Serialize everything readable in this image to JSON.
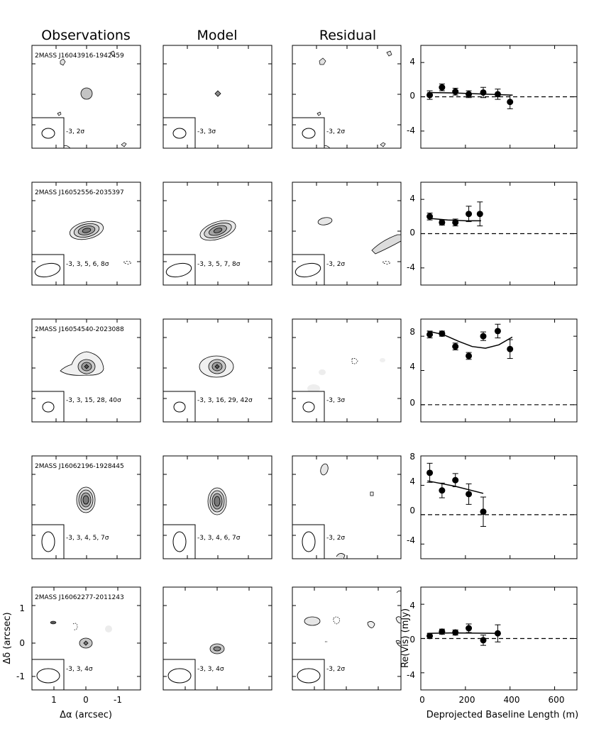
{
  "column_titles": [
    "Observations",
    "Model",
    "Residual"
  ],
  "image_axes": {
    "xlabel": "Δα (arcsec)",
    "ylabel": "Δδ (arcsec)",
    "xticks": [
      "1",
      "0",
      "-1"
    ],
    "yticks": [
      "1",
      "0",
      "-1"
    ]
  },
  "vis_axes": {
    "xlabel": "Deprojected Baseline Length (m)",
    "ylabel": "Re(Vis) (mJy)",
    "xticks": [
      "0",
      "200",
      "400",
      "600"
    ]
  },
  "colors": {
    "ink": "#000000",
    "gray_fill": "#9a9a9a",
    "frame": "#000000"
  },
  "rows": [
    {
      "source": "2MASS J16043916-1942459",
      "obs_levels": "-3, 2σ",
      "model_levels": "-3, 3σ",
      "resid_levels": "-3, 2σ",
      "vis_yticks": [
        "4",
        "0",
        "-4"
      ]
    },
    {
      "source": "2MASS J16052556-2035397",
      "obs_levels": "-3, 3, 5, 6, 8σ",
      "model_levels": "-3, 3, 5, 7, 8σ",
      "resid_levels": "-3, 2σ",
      "vis_yticks": [
        "4",
        "0",
        "-4"
      ]
    },
    {
      "source": "2MASS J16054540-2023088",
      "obs_levels": "-3, 3, 15, 28, 40σ",
      "model_levels": "-3, 3, 16, 29, 42σ",
      "resid_levels": "-3, 3σ",
      "vis_yticks": [
        "8",
        "4",
        "0"
      ]
    },
    {
      "source": "2MASS J16062196-1928445",
      "obs_levels": "-3, 3, 4, 5, 7σ",
      "model_levels": "-3, 3, 4, 6, 7σ",
      "resid_levels": "-3, 2σ",
      "vis_yticks": [
        "8",
        "4",
        "0",
        "-4"
      ]
    },
    {
      "source": "2MASS J16062277-2011243",
      "obs_levels": "-3, 3, 4σ",
      "model_levels": "-3, 3, 4σ",
      "resid_levels": "-3, 2σ",
      "vis_yticks": [
        "4",
        "0",
        "-4"
      ]
    }
  ],
  "chart_data": [
    {
      "type": "scatter",
      "xlabel": "",
      "ylabel": "",
      "xlim": [
        0,
        700
      ],
      "ylim": [
        -6,
        6
      ],
      "points": [
        {
          "x": 40,
          "y": 0.2,
          "err": 0.5
        },
        {
          "x": 95,
          "y": 1.1,
          "err": 0.4
        },
        {
          "x": 155,
          "y": 0.6,
          "err": 0.4
        },
        {
          "x": 215,
          "y": 0.3,
          "err": 0.4
        },
        {
          "x": 280,
          "y": 0.5,
          "err": 0.6
        },
        {
          "x": 345,
          "y": 0.3,
          "err": 0.6
        },
        {
          "x": 400,
          "y": -0.6,
          "err": 0.8
        }
      ],
      "model": [
        {
          "x": 30,
          "y": 0.5
        },
        {
          "x": 150,
          "y": 0.45
        },
        {
          "x": 300,
          "y": 0.3
        },
        {
          "x": 410,
          "y": 0.2
        }
      ]
    },
    {
      "type": "scatter",
      "xlabel": "",
      "ylabel": "",
      "xlim": [
        0,
        700
      ],
      "ylim": [
        -6,
        6
      ],
      "points": [
        {
          "x": 40,
          "y": 2.0,
          "err": 0.4
        },
        {
          "x": 95,
          "y": 1.3,
          "err": 0.3
        },
        {
          "x": 155,
          "y": 1.3,
          "err": 0.4
        },
        {
          "x": 215,
          "y": 2.3,
          "err": 0.9
        },
        {
          "x": 265,
          "y": 2.3,
          "err": 1.4
        }
      ],
      "model": [
        {
          "x": 30,
          "y": 1.8
        },
        {
          "x": 120,
          "y": 1.6
        },
        {
          "x": 200,
          "y": 1.5
        },
        {
          "x": 270,
          "y": 1.5
        }
      ]
    },
    {
      "type": "scatter",
      "xlabel": "",
      "ylabel": "",
      "xlim": [
        0,
        700
      ],
      "ylim": [
        -2,
        10
      ],
      "points": [
        {
          "x": 40,
          "y": 8.2,
          "err": 0.4
        },
        {
          "x": 95,
          "y": 8.3,
          "err": 0.3
        },
        {
          "x": 155,
          "y": 6.8,
          "err": 0.4
        },
        {
          "x": 215,
          "y": 5.7,
          "err": 0.4
        },
        {
          "x": 280,
          "y": 8.0,
          "err": 0.5
        },
        {
          "x": 345,
          "y": 8.6,
          "err": 0.8
        },
        {
          "x": 400,
          "y": 6.5,
          "err": 1.1
        }
      ],
      "model": [
        {
          "x": 30,
          "y": 8.6
        },
        {
          "x": 100,
          "y": 8.2
        },
        {
          "x": 170,
          "y": 7.4
        },
        {
          "x": 230,
          "y": 6.8
        },
        {
          "x": 290,
          "y": 6.6
        },
        {
          "x": 350,
          "y": 7.0
        },
        {
          "x": 410,
          "y": 7.9
        }
      ]
    },
    {
      "type": "scatter",
      "xlabel": "",
      "ylabel": "",
      "xlim": [
        0,
        700
      ],
      "ylim": [
        -6,
        8
      ],
      "points": [
        {
          "x": 40,
          "y": 5.7,
          "err": 1.3
        },
        {
          "x": 95,
          "y": 3.3,
          "err": 1.0
        },
        {
          "x": 155,
          "y": 4.7,
          "err": 0.9
        },
        {
          "x": 215,
          "y": 2.8,
          "err": 1.4
        },
        {
          "x": 280,
          "y": 0.4,
          "err": 2.0
        }
      ],
      "model": [
        {
          "x": 30,
          "y": 4.6
        },
        {
          "x": 150,
          "y": 3.9
        },
        {
          "x": 280,
          "y": 2.9
        }
      ]
    },
    {
      "type": "scatter",
      "xlabel": "",
      "ylabel": "",
      "xlim": [
        0,
        700
      ],
      "ylim": [
        -6,
        6
      ],
      "points": [
        {
          "x": 40,
          "y": 0.3,
          "err": 0.3
        },
        {
          "x": 95,
          "y": 0.8,
          "err": 0.3
        },
        {
          "x": 155,
          "y": 0.7,
          "err": 0.3
        },
        {
          "x": 215,
          "y": 1.2,
          "err": 0.5
        },
        {
          "x": 280,
          "y": -0.2,
          "err": 0.6
        },
        {
          "x": 345,
          "y": 0.6,
          "err": 1.0
        }
      ],
      "model": [
        {
          "x": 30,
          "y": 0.6
        },
        {
          "x": 150,
          "y": 0.65
        },
        {
          "x": 350,
          "y": 0.6
        }
      ]
    }
  ]
}
